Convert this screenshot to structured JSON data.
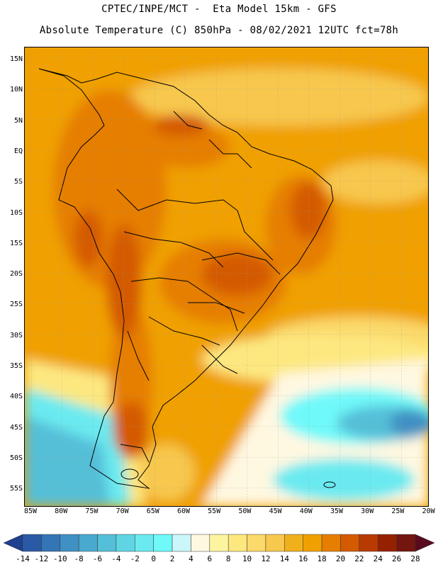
{
  "header": {
    "line1": "CPTEC/INPE/MCT -  Eta Model 15km - GFS",
    "line2": "Absolute Temperature (C) 850hPa - 08/02/2021 12UTC fct=78h"
  },
  "map": {
    "lat_labels": [
      "15N",
      "10N",
      "5N",
      "EQ",
      "5S",
      "10S",
      "15S",
      "20S",
      "25S",
      "30S",
      "35S",
      "40S",
      "45S",
      "50S",
      "55S"
    ],
    "lon_labels": [
      "85W",
      "80W",
      "75W",
      "70W",
      "65W",
      "60W",
      "55W",
      "50W",
      "45W",
      "40W",
      "35W",
      "30W",
      "25W",
      "20W"
    ]
  },
  "colorbar": {
    "labels": [
      "-14",
      "-12",
      "-10",
      "-8",
      "-6",
      "-4",
      "-2",
      "0",
      "2",
      "4",
      "6",
      "8",
      "10",
      "12",
      "14",
      "16",
      "18",
      "20",
      "22",
      "24",
      "26",
      "28"
    ],
    "colors": [
      "#1f3f8f",
      "#2a5aa6",
      "#3475b5",
      "#3f90c3",
      "#4aa9cf",
      "#54bfd8",
      "#5fd5e3",
      "#6aeaf0",
      "#6ff9f9",
      "#cbf6fa",
      "#fff8e1",
      "#fdf4a0",
      "#fde880",
      "#fbd96a",
      "#f7c84e",
      "#f0b01c",
      "#f0a000",
      "#e67e00",
      "#d45a00",
      "#b83a00",
      "#962100",
      "#74150f",
      "#5a0a1e"
    ],
    "color_names": [
      "deep-blue",
      "blue",
      "blue",
      "blue",
      "light-blue",
      "light-blue",
      "cyan",
      "cyan",
      "aqua",
      "pale-cyan",
      "cream",
      "pale-yellow",
      "yellow",
      "yellow",
      "gold",
      "gold",
      "orange",
      "dark-orange",
      "red-orange",
      "rust",
      "brown",
      "dark-brown",
      "maroon"
    ]
  }
}
